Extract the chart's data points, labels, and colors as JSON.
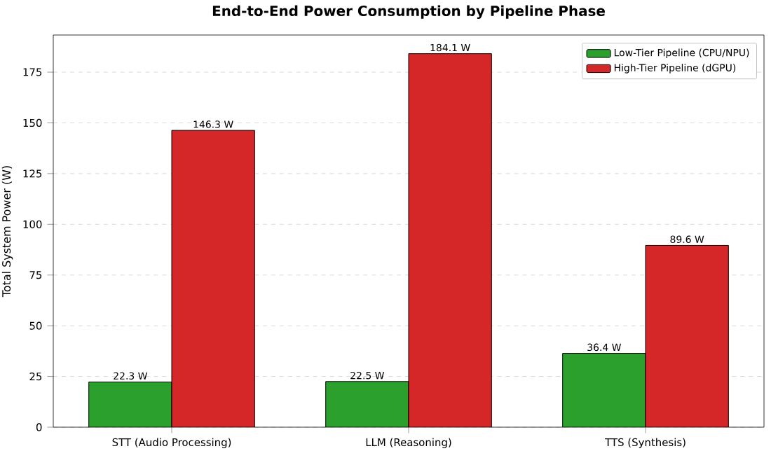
{
  "chart_data": {
    "type": "bar",
    "title": "End-to-End Power Consumption by Pipeline Phase",
    "ylabel": "Total System Power (W)",
    "categories": [
      "STT (Audio Processing)",
      "LLM (Reasoning)",
      "TTS (Synthesis)"
    ],
    "series": [
      {
        "name": "Low-Tier Pipeline (CPU/NPU)",
        "color": "#2ca02c",
        "values": [
          22.3,
          22.5,
          36.4
        ],
        "value_labels": [
          "22.3 W",
          "22.5 W",
          "36.4 W"
        ]
      },
      {
        "name": "High-Tier Pipeline (dGPU)",
        "color": "#d62728",
        "values": [
          146.3,
          184.1,
          89.6
        ],
        "value_labels": [
          "146.3 W",
          "184.1 W",
          "89.6 W"
        ]
      }
    ],
    "ylim": [
      0,
      193.3
    ],
    "yticks": [
      0,
      25,
      50,
      75,
      100,
      125,
      150,
      175
    ],
    "grid": "y",
    "legend": "top right"
  }
}
